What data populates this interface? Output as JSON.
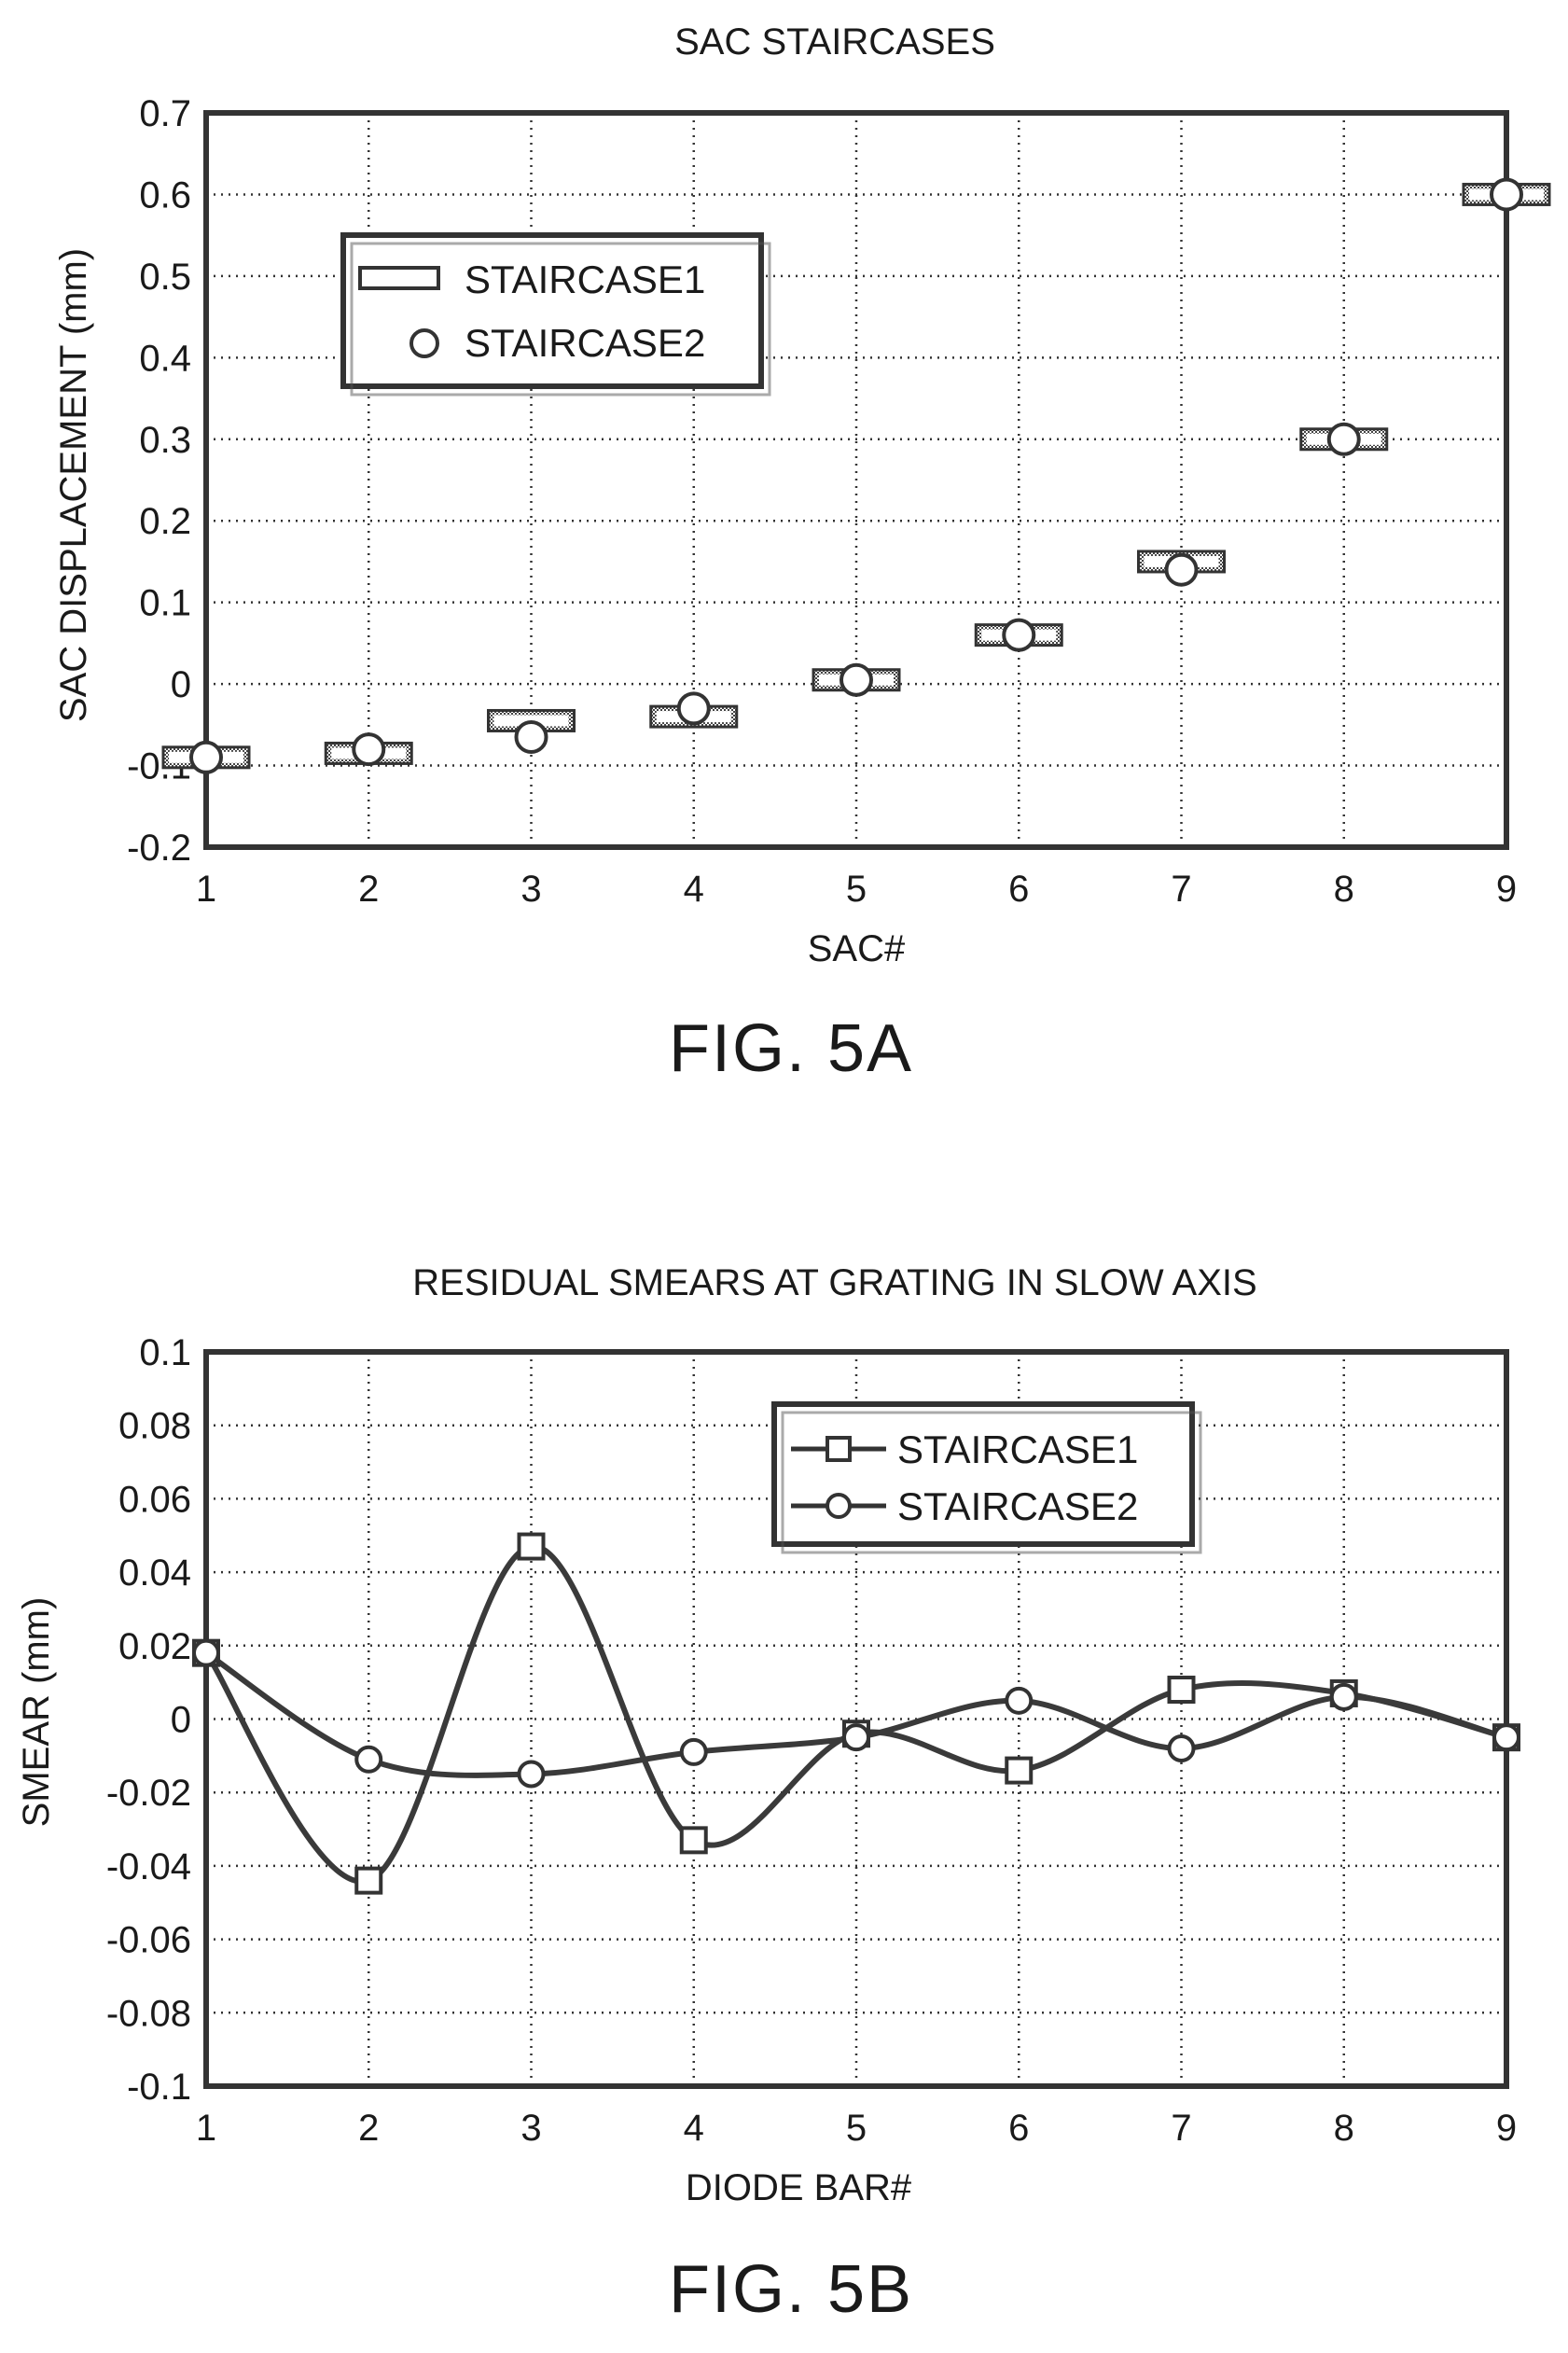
{
  "chart_data": [
    {
      "type": "scatter",
      "title": "SAC STAIRCASES",
      "xlabel": "SAC#",
      "ylabel": "SAC DISPLACEMENT (mm)",
      "caption": "FIG. 5A",
      "x": [
        1,
        2,
        3,
        4,
        5,
        6,
        7,
        8,
        9
      ],
      "xticks": [
        "1",
        "2",
        "3",
        "4",
        "5",
        "6",
        "7",
        "8",
        "9"
      ],
      "yticks": [
        "0.7",
        "0.6",
        "0.5",
        "0.4",
        "0.3",
        "0.2",
        "0.1",
        "0",
        "-0.1",
        "-0.2"
      ],
      "xlim": [
        1,
        9
      ],
      "ylim": [
        -0.2,
        0.7
      ],
      "grid": true,
      "legend_position": "upper-left",
      "series": [
        {
          "name": "STAIRCASE1",
          "marker": "rectangle",
          "values": [
            -0.09,
            -0.085,
            -0.045,
            -0.04,
            0.005,
            0.06,
            0.15,
            0.3,
            0.6
          ]
        },
        {
          "name": "STAIRCASE2",
          "marker": "circle",
          "values": [
            -0.09,
            -0.08,
            -0.065,
            -0.03,
            0.005,
            0.06,
            0.14,
            0.3,
            0.6
          ]
        }
      ]
    },
    {
      "type": "line",
      "title": "RESIDUAL SMEARS AT GRATING IN SLOW AXIS",
      "xlabel": "DIODE BAR#",
      "ylabel": "SMEAR (mm)",
      "caption": "FIG. 5B",
      "x": [
        1,
        2,
        3,
        4,
        5,
        6,
        7,
        8,
        9
      ],
      "xticks": [
        "1",
        "2",
        "3",
        "4",
        "5",
        "6",
        "7",
        "8",
        "9"
      ],
      "yticks": [
        "0.1",
        "0.08",
        "0.06",
        "0.04",
        "0.02",
        "0",
        "-0.02",
        "-0.04",
        "-0.06",
        "-0.08",
        "-0.1"
      ],
      "xlim": [
        1,
        9
      ],
      "ylim": [
        -0.1,
        0.1
      ],
      "grid": true,
      "legend_position": "upper-right",
      "series": [
        {
          "name": "STAIRCASE1",
          "marker": "square",
          "values": [
            0.018,
            -0.044,
            0.047,
            -0.033,
            -0.004,
            -0.014,
            0.008,
            0.007,
            -0.005
          ]
        },
        {
          "name": "STAIRCASE2",
          "marker": "circle",
          "values": [
            0.018,
            -0.011,
            -0.015,
            -0.009,
            -0.005,
            0.005,
            -0.008,
            0.006,
            -0.005
          ]
        }
      ]
    }
  ]
}
